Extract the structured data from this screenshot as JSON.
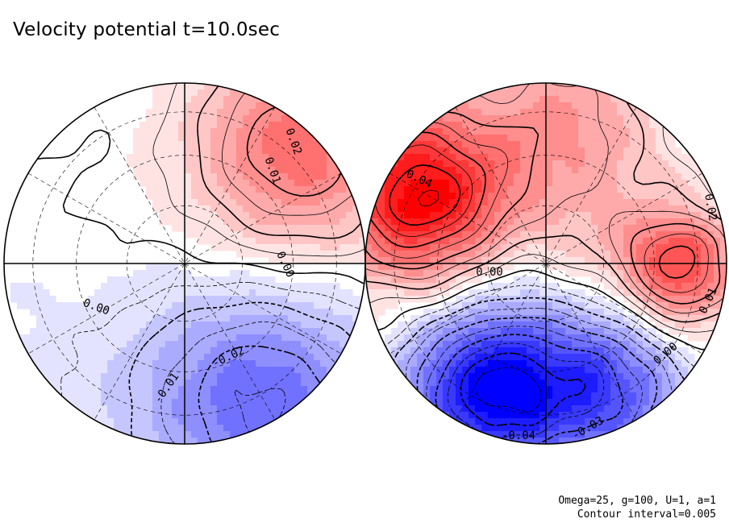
{
  "title": "Velocity potential t=10.0sec",
  "footer": {
    "line1": "Omega=25, g=100, U=1, a=1",
    "line2": "Contour interval=0.005"
  },
  "chart_data": {
    "type": "contour",
    "field": "Velocity potential",
    "time": "t=10.0sec",
    "projection": "two hemispheres (orthographic)",
    "contour_interval": 0.005,
    "color_scale": {
      "negative": "#0000ff",
      "zero": "#ffffff",
      "positive": "#ff0000"
    },
    "parameters": {
      "Omega": 25,
      "g": 100,
      "U": 1,
      "a": 1
    },
    "hemispheres": [
      {
        "name": "left",
        "range": [
          -0.025,
          0.025
        ],
        "extrema": [
          {
            "kind": "max",
            "value": 0.025,
            "location": "upper-right rim"
          },
          {
            "kind": "min",
            "value": -0.025,
            "location": "lower-right rim"
          }
        ],
        "contour_labels": [
          {
            "text": "0.02",
            "value": 0.02
          },
          {
            "text": "0.01",
            "value": 0.01
          },
          {
            "text": "0.00",
            "value": 0.0
          },
          {
            "text": "0.00",
            "value": 0.0
          },
          {
            "text": "-0.02",
            "value": -0.02
          },
          {
            "text": "-0.01",
            "value": -0.01
          }
        ]
      },
      {
        "name": "right",
        "range": [
          -0.045,
          0.045
        ],
        "extrema": [
          {
            "kind": "max",
            "value": 0.045,
            "location": "upper-left"
          },
          {
            "kind": "max",
            "value": 0.03,
            "location": "right"
          },
          {
            "kind": "min",
            "value": -0.045,
            "location": "lower-center"
          }
        ],
        "contour_labels": [
          {
            "text": "0.04",
            "value": 0.04
          },
          {
            "text": "0.02",
            "value": 0.02
          },
          {
            "text": "0.00",
            "value": 0.0
          },
          {
            "text": "0.01",
            "value": 0.01
          },
          {
            "text": "0.00",
            "value": 0.0
          },
          {
            "text": "-0.03",
            "value": -0.03
          },
          {
            "text": "-0.04",
            "value": -0.04
          }
        ]
      }
    ]
  }
}
